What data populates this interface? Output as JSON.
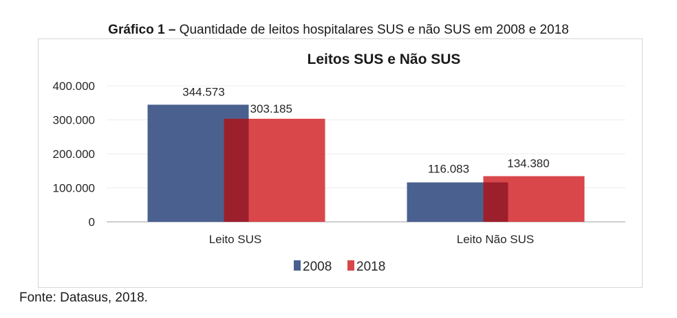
{
  "caption": {
    "label": "Gráfico 1 –",
    "text": "Quantidade de leitos hospitalares SUS e não SUS em 2008 e 2018"
  },
  "source": "Fonte: Datasus, 2018.",
  "colors": {
    "2008": "#4a6190",
    "2018": "#d9474b",
    "overlap": "#9c1f2c"
  },
  "chart_data": {
    "type": "bar",
    "title": "Leitos SUS e Não SUS",
    "categories": [
      "Leito SUS",
      "Leito Não SUS"
    ],
    "series": [
      {
        "name": "2008",
        "values": [
          344573,
          116083
        ],
        "labels": [
          "344.573",
          "116.083"
        ]
      },
      {
        "name": "2018",
        "values": [
          303185,
          134380
        ],
        "labels": [
          "303.185",
          "134.380"
        ]
      }
    ],
    "yticks": [
      0,
      100000,
      200000,
      300000,
      400000
    ],
    "ytick_labels": [
      "0",
      "100.000",
      "200.000",
      "300.000",
      "400.000"
    ],
    "ylim": [
      0,
      400000
    ],
    "xlabel": "",
    "ylabel": "",
    "grid": true,
    "legend": "bottom"
  }
}
